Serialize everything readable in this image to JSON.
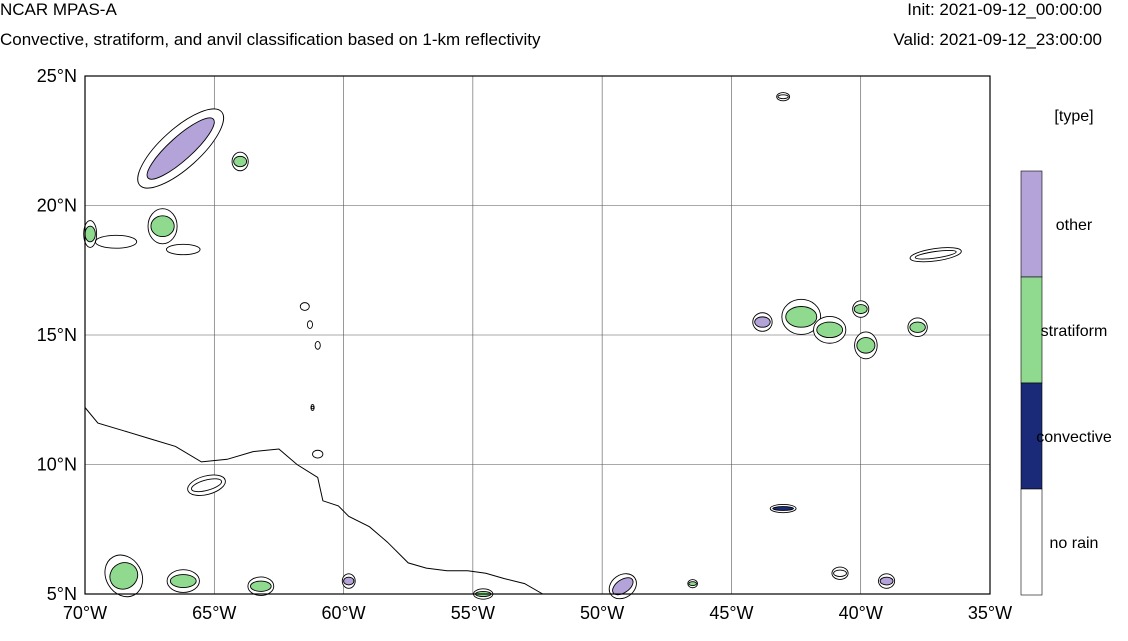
{
  "header": {
    "model": "NCAR MPAS-A",
    "subtitle": "Convective, stratiform, and anvil classification based on 1-km reflectivity",
    "init": "Init: 2021-09-12_00:00:00",
    "valid": "Valid: 2021-09-12_23:00:00"
  },
  "map": {
    "lon_range": [
      -70,
      -35
    ],
    "lat_range": [
      5,
      25
    ],
    "grid": true,
    "lon_ticks": [
      {
        "value": -70,
        "label": "70°W"
      },
      {
        "value": -65,
        "label": "65°W"
      },
      {
        "value": -60,
        "label": "60°W"
      },
      {
        "value": -55,
        "label": "55°W"
      },
      {
        "value": -50,
        "label": "50°W"
      },
      {
        "value": -45,
        "label": "45°W"
      },
      {
        "value": -40,
        "label": "40°W"
      },
      {
        "value": -35,
        "label": "35°W"
      }
    ],
    "lat_ticks": [
      {
        "value": 25,
        "label": "25°N"
      },
      {
        "value": 20,
        "label": "20°N"
      },
      {
        "value": 15,
        "label": "15°N"
      },
      {
        "value": 10,
        "label": "10°N"
      },
      {
        "value": 5,
        "label": "5°N"
      }
    ]
  },
  "legend": {
    "title": "[type]",
    "classes": [
      {
        "label": "other",
        "color": "#b3a3d9"
      },
      {
        "label": "stratiform",
        "color": "#8fda8f"
      },
      {
        "label": "convective",
        "color": "#1a2a78"
      },
      {
        "label": "no rain",
        "color": "#ffffff"
      }
    ]
  },
  "features": {
    "coastline": [
      [
        -70,
        12.2
      ],
      [
        -69.5,
        11.6
      ],
      [
        -68.5,
        11.3
      ],
      [
        -67.5,
        11.0
      ],
      [
        -66.5,
        10.7
      ],
      [
        -65.5,
        10.1
      ],
      [
        -64.5,
        10.2
      ],
      [
        -63.5,
        10.5
      ],
      [
        -62.5,
        10.6
      ],
      [
        -61.8,
        10.0
      ],
      [
        -61.0,
        9.5
      ],
      [
        -60.8,
        8.6
      ],
      [
        -60.2,
        8.4
      ],
      [
        -59.8,
        8.0
      ],
      [
        -59.0,
        7.6
      ],
      [
        -58.3,
        7.0
      ],
      [
        -57.5,
        6.2
      ],
      [
        -56.8,
        6.0
      ],
      [
        -56.0,
        5.9
      ],
      [
        -55.2,
        5.9
      ],
      [
        -54.5,
        5.8
      ],
      [
        -53.8,
        5.6
      ],
      [
        -53.0,
        5.4
      ],
      [
        -52.3,
        5.0
      ]
    ],
    "islands": [
      {
        "lon": -68.8,
        "lat": 18.6,
        "w": 1.6,
        "h": 0.5
      },
      {
        "lon": -66.2,
        "lat": 18.3,
        "w": 1.3,
        "h": 0.4
      },
      {
        "lon": -61.5,
        "lat": 16.1,
        "w": 0.35,
        "h": 0.3
      },
      {
        "lon": -61.3,
        "lat": 15.4,
        "w": 0.2,
        "h": 0.3
      },
      {
        "lon": -61.0,
        "lat": 14.6,
        "w": 0.2,
        "h": 0.3
      },
      {
        "lon": -61.0,
        "lat": 10.4,
        "w": 0.4,
        "h": 0.3
      }
    ],
    "systems": [
      {
        "lon": -66.3,
        "lat": 22.2,
        "w": 3.4,
        "h": 0.9,
        "rot": -42,
        "cls": "other"
      },
      {
        "lon": -67.0,
        "lat": 19.2,
        "w": 0.9,
        "h": 0.8,
        "rot": 0,
        "cls": "stratiform"
      },
      {
        "lon": -69.8,
        "lat": 18.9,
        "w": 0.4,
        "h": 0.6,
        "rot": 0,
        "cls": "stratiform"
      },
      {
        "lon": -64.0,
        "lat": 21.7,
        "w": 0.5,
        "h": 0.4,
        "rot": 0,
        "cls": "stratiform"
      },
      {
        "lon": -68.5,
        "lat": 5.7,
        "w": 1.1,
        "h": 1.0,
        "rot": -30,
        "cls": "stratiform"
      },
      {
        "lon": -66.2,
        "lat": 5.5,
        "w": 1.0,
        "h": 0.5,
        "rot": 0,
        "cls": "stratiform"
      },
      {
        "lon": -63.2,
        "lat": 5.3,
        "w": 0.8,
        "h": 0.4,
        "rot": 0,
        "cls": "stratiform"
      },
      {
        "lon": -65.3,
        "lat": 9.2,
        "w": 1.2,
        "h": 0.4,
        "rot": -15,
        "cls": "none"
      },
      {
        "lon": -59.8,
        "lat": 5.5,
        "w": 0.4,
        "h": 0.3,
        "rot": 0,
        "cls": "other"
      },
      {
        "lon": -54.6,
        "lat": 5.0,
        "w": 0.6,
        "h": 0.2,
        "rot": 0,
        "cls": "stratiform"
      },
      {
        "lon": -49.2,
        "lat": 5.3,
        "w": 0.9,
        "h": 0.5,
        "rot": -35,
        "cls": "other"
      },
      {
        "lon": -46.5,
        "lat": 5.4,
        "w": 0.3,
        "h": 0.15,
        "rot": 0,
        "cls": "stratiform"
      },
      {
        "lon": -42.3,
        "lat": 15.7,
        "w": 1.2,
        "h": 0.8,
        "rot": 0,
        "cls": "stratiform"
      },
      {
        "lon": -41.2,
        "lat": 15.2,
        "w": 1.0,
        "h": 0.6,
        "rot": 0,
        "cls": "stratiform"
      },
      {
        "lon": -39.8,
        "lat": 14.6,
        "w": 0.7,
        "h": 0.6,
        "rot": 0,
        "cls": "stratiform"
      },
      {
        "lon": -37.8,
        "lat": 15.3,
        "w": 0.6,
        "h": 0.4,
        "rot": 0,
        "cls": "stratiform"
      },
      {
        "lon": -43.8,
        "lat": 15.5,
        "w": 0.6,
        "h": 0.4,
        "rot": 0,
        "cls": "other"
      },
      {
        "lon": -40.0,
        "lat": 16.0,
        "w": 0.5,
        "h": 0.35,
        "rot": 0,
        "cls": "stratiform"
      },
      {
        "lon": -37.1,
        "lat": 18.1,
        "w": 1.6,
        "h": 0.25,
        "rot": -8,
        "cls": "none"
      },
      {
        "lon": -43.0,
        "lat": 8.3,
        "w": 0.8,
        "h": 0.15,
        "rot": 0,
        "cls": "convective"
      },
      {
        "lon": -39.0,
        "lat": 5.5,
        "w": 0.5,
        "h": 0.3,
        "rot": 0,
        "cls": "other"
      },
      {
        "lon": -40.8,
        "lat": 5.8,
        "w": 0.5,
        "h": 0.25,
        "rot": 0,
        "cls": "none"
      },
      {
        "lon": -43.0,
        "lat": 24.2,
        "w": 0.4,
        "h": 0.15,
        "rot": 0,
        "cls": "none"
      },
      {
        "lon": -61.2,
        "lat": 12.2,
        "w": 0.1,
        "h": 0.1,
        "rot": 0,
        "cls": "none"
      }
    ]
  }
}
